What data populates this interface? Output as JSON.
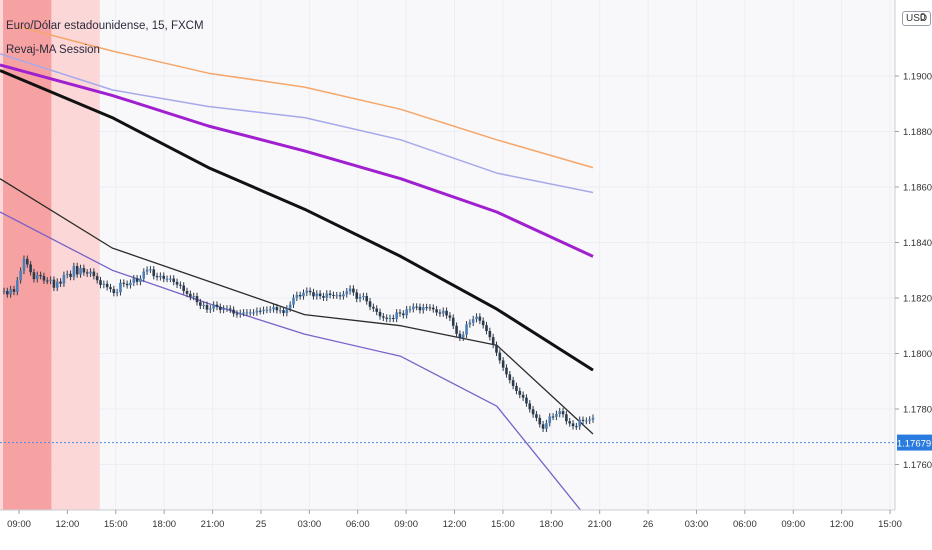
{
  "header": {
    "title": "Euro/Dólar estadounidense, 15, FXCM",
    "subtitle": "Revaj-MA Session"
  },
  "toolbar": {
    "currency_label": "USD",
    "settings_label": "0"
  },
  "colors": {
    "background": "#f8f8fa",
    "grid": "#eceef2",
    "session_green_strong": "#84bd84",
    "session_green_light": "#d6ead6",
    "session_red_strong": "#f7a2a2",
    "session_red_light": "#fbd7d7",
    "candle": "#2d3a4a",
    "candle_up_fill": "#4a7fb8",
    "price_line": "#4a8fe0",
    "price_badge": "#2a7be0"
  },
  "chart_data": {
    "type": "candlestick",
    "title": "Euro/Dólar estadounidense, 15, FXCM",
    "indicator": "Revaj-MA Session",
    "currency": "USD",
    "ylim": [
      1.1755,
      1.1955
    ],
    "y_ticks": [
      "1.19000",
      "1.18800",
      "1.18600",
      "1.18400",
      "1.18200",
      "1.18000",
      "1.17800",
      "1.17600"
    ],
    "current_price": "1.17679",
    "x_ticks": [
      "09:00",
      "12:00",
      "15:00",
      "18:00",
      "21:00",
      "25",
      "03:00",
      "06:00",
      "09:00",
      "12:00",
      "15:00",
      "18:00",
      "21:00",
      "26",
      "03:00",
      "06:00",
      "09:00",
      "12:00",
      "15:00"
    ],
    "sessions": [
      {
        "type": "green",
        "strong": [
          -1.0,
          0.33
        ],
        "light": [
          0.33,
          1.33
        ]
      },
      {
        "type": "red",
        "strong": [
          2.67,
          3.67
        ],
        "light_before": [
          2.0,
          2.67
        ],
        "light_after": [
          3.67,
          4.67
        ]
      },
      {
        "type": "green",
        "strong": [
          24.33,
          25.33
        ],
        "light_before": [
          23.67,
          24.33
        ],
        "light_after": [
          25.33,
          26.33
        ]
      },
      {
        "type": "red",
        "strong": [
          27.33,
          28.33
        ],
        "light_before": [
          26.67,
          27.33
        ],
        "light_after": [
          28.33,
          29.33
        ]
      }
    ],
    "candles": {
      "start_hour": 8,
      "step_hours": 0.25,
      "closes": [
        1.8225,
        1.8213,
        1.8232,
        1.8222,
        1.8264,
        1.8298,
        1.8341,
        1.8321,
        1.8293,
        1.8268,
        1.8283,
        1.8279,
        1.8263,
        1.8262,
        1.8266,
        1.8237,
        1.8259,
        1.8252,
        1.8283,
        1.8287,
        1.8276,
        1.8315,
        1.8285,
        1.8308,
        1.8292,
        1.8288,
        1.8295,
        1.8279,
        1.8264,
        1.8247,
        1.8251,
        1.8239,
        1.8232,
        1.8218,
        1.8221,
        1.8255,
        1.8251,
        1.8246,
        1.8255,
        1.8271,
        1.8258,
        1.827,
        1.8295,
        1.8302,
        1.8303,
        1.8279,
        1.8275,
        1.828,
        1.8269,
        1.8269,
        1.827,
        1.8258,
        1.8248,
        1.8245,
        1.8225,
        1.8215,
        1.8204,
        1.8207,
        1.8185,
        1.8172,
        1.8175,
        1.8158,
        1.8162,
        1.8176,
        1.8168,
        1.8157,
        1.8162,
        1.8162,
        1.8158,
        1.8144,
        1.8141,
        1.8146,
        1.8148,
        1.8148,
        1.8148,
        1.8148,
        1.8154,
        1.8153,
        1.8157,
        1.8158,
        1.8159,
        1.8167,
        1.8156,
        1.8156,
        1.8146,
        1.8162,
        1.8176,
        1.8201,
        1.8211,
        1.8206,
        1.8219,
        1.8226,
        1.8221,
        1.8206,
        1.8216,
        1.8207,
        1.8201,
        1.8216,
        1.8211,
        1.8209,
        1.821,
        1.8206,
        1.8214,
        1.8224,
        1.8234,
        1.822,
        1.8197,
        1.8204,
        1.8207,
        1.8188,
        1.8168,
        1.8162,
        1.815,
        1.8134,
        1.8129,
        1.8125,
        1.8128,
        1.8125,
        1.8148,
        1.8144,
        1.8138,
        1.8159,
        1.816,
        1.8169,
        1.8168,
        1.8156,
        1.8167,
        1.8166,
        1.8165,
        1.8159,
        1.8148,
        1.8144,
        1.8154,
        1.8137,
        1.8129,
        1.81,
        1.8071,
        1.8057,
        1.8068,
        1.8105,
        1.8111,
        1.8124,
        1.8133,
        1.8118,
        1.8102,
        1.8081,
        1.8059,
        1.8031,
        1.8003,
        1.7975,
        1.7949,
        1.7925,
        1.7904,
        1.7883,
        1.7865,
        1.7851,
        1.7841,
        1.782,
        1.7799,
        1.7781,
        1.7768,
        1.7745,
        1.7729,
        1.7749,
        1.7773,
        1.7772,
        1.7782,
        1.7792,
        1.7781,
        1.7756,
        1.7748,
        1.7738,
        1.7737,
        1.7761,
        1.7757,
        1.7758,
        1.7762,
        1.7768
      ],
      "note_units": "closes are EURUSD minus 0.00000 shown with offset 1.17/1.18 scale"
    },
    "moving_averages": [
      {
        "color": "#f5a66a",
        "width": 1.5,
        "points": [
          [
            0,
            1.1918
          ],
          [
            6,
            1.1909
          ],
          [
            12,
            1.1901
          ],
          [
            18,
            1.1896
          ],
          [
            24,
            1.1888
          ],
          [
            30,
            1.1877
          ],
          [
            36,
            1.1867
          ]
        ]
      },
      {
        "color": "#a6a9ea",
        "width": 1.5,
        "points": [
          [
            -1,
            1.1908
          ],
          [
            6,
            1.1895
          ],
          [
            12,
            1.1889
          ],
          [
            18,
            1.1885
          ],
          [
            24,
            1.1877
          ],
          [
            30,
            1.1865
          ],
          [
            36,
            1.1858
          ]
        ]
      },
      {
        "color": "#a020d0",
        "width": 3,
        "points": [
          [
            -1,
            1.1904
          ],
          [
            6,
            1.1893
          ],
          [
            12,
            1.1882
          ],
          [
            18,
            1.1873
          ],
          [
            24,
            1.1863
          ],
          [
            30,
            1.1851
          ],
          [
            36,
            1.1835
          ]
        ]
      },
      {
        "color": "#111111",
        "width": 3,
        "points": [
          [
            -1,
            1.1902
          ],
          [
            6,
            1.1885
          ],
          [
            12,
            1.1867
          ],
          [
            18,
            1.1852
          ],
          [
            24,
            1.1835
          ],
          [
            30,
            1.1816
          ],
          [
            36,
            1.1794
          ]
        ]
      },
      {
        "color": "#2b2b2b",
        "width": 1.3,
        "points": [
          [
            -1,
            1.1863
          ],
          [
            6,
            1.1838
          ],
          [
            12,
            1.1826
          ],
          [
            18,
            1.1814
          ],
          [
            24,
            1.181
          ],
          [
            30,
            1.1803
          ],
          [
            36,
            1.1771
          ]
        ]
      },
      {
        "color": "#7b61c9",
        "width": 1.3,
        "points": [
          [
            -1,
            1.1851
          ],
          [
            6,
            1.183
          ],
          [
            12,
            1.1818
          ],
          [
            18,
            1.1807
          ],
          [
            24,
            1.1799
          ],
          [
            30,
            1.1781
          ],
          [
            36,
            1.1738
          ]
        ]
      }
    ]
  }
}
